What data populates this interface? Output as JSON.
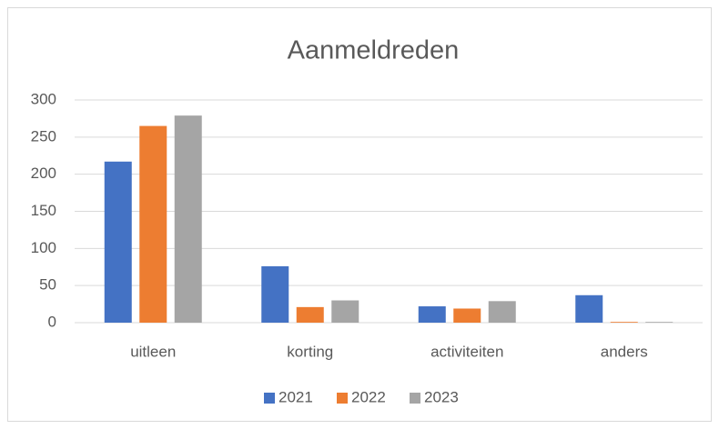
{
  "chart_data": {
    "type": "bar",
    "title": "Aanmeldreden",
    "categories": [
      "uitleen",
      "korting",
      "activiteiten",
      "anders"
    ],
    "series": [
      {
        "name": "2021",
        "color": "#4472c4",
        "values": [
          217,
          76,
          22,
          37
        ]
      },
      {
        "name": "2022",
        "color": "#ed7d31",
        "values": [
          265,
          21,
          19,
          1
        ]
      },
      {
        "name": "2023",
        "color": "#a5a5a5",
        "values": [
          279,
          30,
          29,
          1
        ]
      }
    ],
    "ylim": [
      0,
      300
    ],
    "yticks": [
      0,
      50,
      100,
      150,
      200,
      250,
      300
    ],
    "grid": true,
    "legend": "bottom"
  }
}
